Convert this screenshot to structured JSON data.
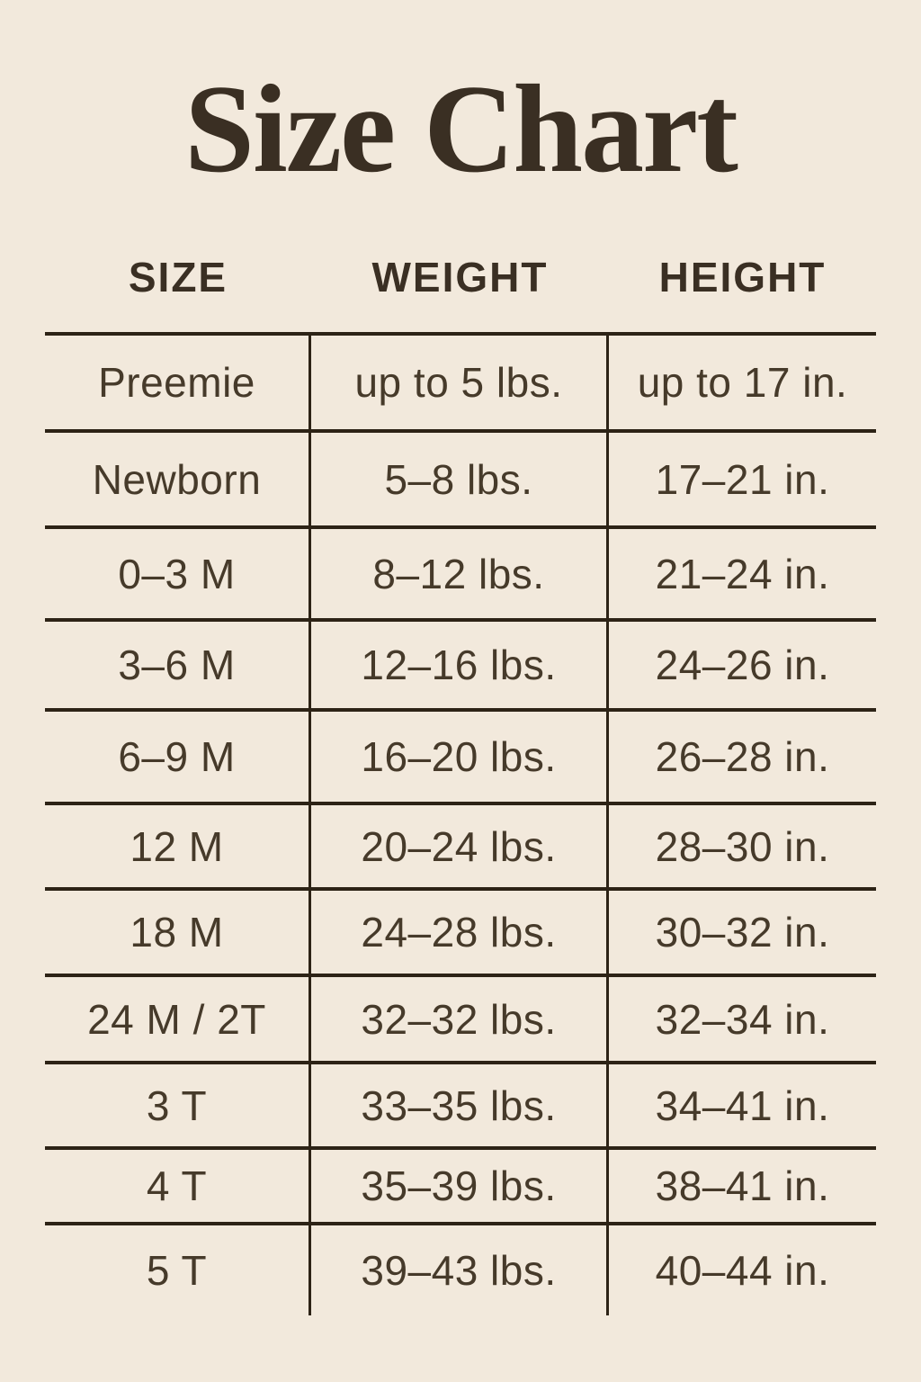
{
  "title": "Size Chart",
  "colors": {
    "background": "#f2e9dc",
    "text": "#463a2a",
    "title_text": "#3a2f23",
    "line": "#2d2316"
  },
  "table": {
    "headers": [
      "SIZE",
      "WEIGHT",
      "HEIGHT"
    ],
    "rows": [
      {
        "size": "Preemie",
        "weight": "up to 5 lbs.",
        "height": "up to 17 in."
      },
      {
        "size": "Newborn",
        "weight": "5–8 lbs.",
        "height": "17–21 in."
      },
      {
        "size": "0–3 M",
        "weight": "8–12 lbs.",
        "height": "21–24 in."
      },
      {
        "size": "3–6 M",
        "weight": "12–16 lbs.",
        "height": "24–26 in."
      },
      {
        "size": "6–9 M",
        "weight": "16–20 lbs.",
        "height": "26–28 in."
      },
      {
        "size": "12 M",
        "weight": "20–24 lbs.",
        "height": "28–30 in."
      },
      {
        "size": "18 M",
        "weight": "24–28 lbs.",
        "height": "30–32 in."
      },
      {
        "size": "24 M / 2T",
        "weight": "32–32 lbs.",
        "height": "32–34 in."
      },
      {
        "size": "3 T",
        "weight": "33–35 lbs.",
        "height": "34–41 in."
      },
      {
        "size": "4 T",
        "weight": "35–39 lbs.",
        "height": "38–41 in."
      },
      {
        "size": "5 T",
        "weight": "39–43 lbs.",
        "height": "40–44 in."
      }
    ]
  },
  "chart_data": {
    "type": "table",
    "title": "Size Chart",
    "columns": [
      "SIZE",
      "WEIGHT",
      "HEIGHT"
    ],
    "rows": [
      [
        "Preemie",
        "up to 5 lbs.",
        "up to 17 in."
      ],
      [
        "Newborn",
        "5–8 lbs.",
        "17–21 in."
      ],
      [
        "0–3 M",
        "8–12 lbs.",
        "21–24 in."
      ],
      [
        "3–6 M",
        "12–16 lbs.",
        "24–26 in."
      ],
      [
        "6–9 M",
        "16–20 lbs.",
        "26–28 in."
      ],
      [
        "12 M",
        "20–24 lbs.",
        "28–30 in."
      ],
      [
        "18 M",
        "24–28 lbs.",
        "30–32 in."
      ],
      [
        "24 M / 2T",
        "32–32 lbs.",
        "32–34 in."
      ],
      [
        "3 T",
        "33–35 lbs.",
        "34–41 in."
      ],
      [
        "4 T",
        "35–39 lbs.",
        "38–41 in."
      ],
      [
        "5 T",
        "39–43 lbs.",
        "40–44 in."
      ]
    ],
    "layout": {
      "header_row": true,
      "outer_side_borders": false,
      "bottom_border": false,
      "column_dividers": true,
      "row_dividers": true
    }
  }
}
